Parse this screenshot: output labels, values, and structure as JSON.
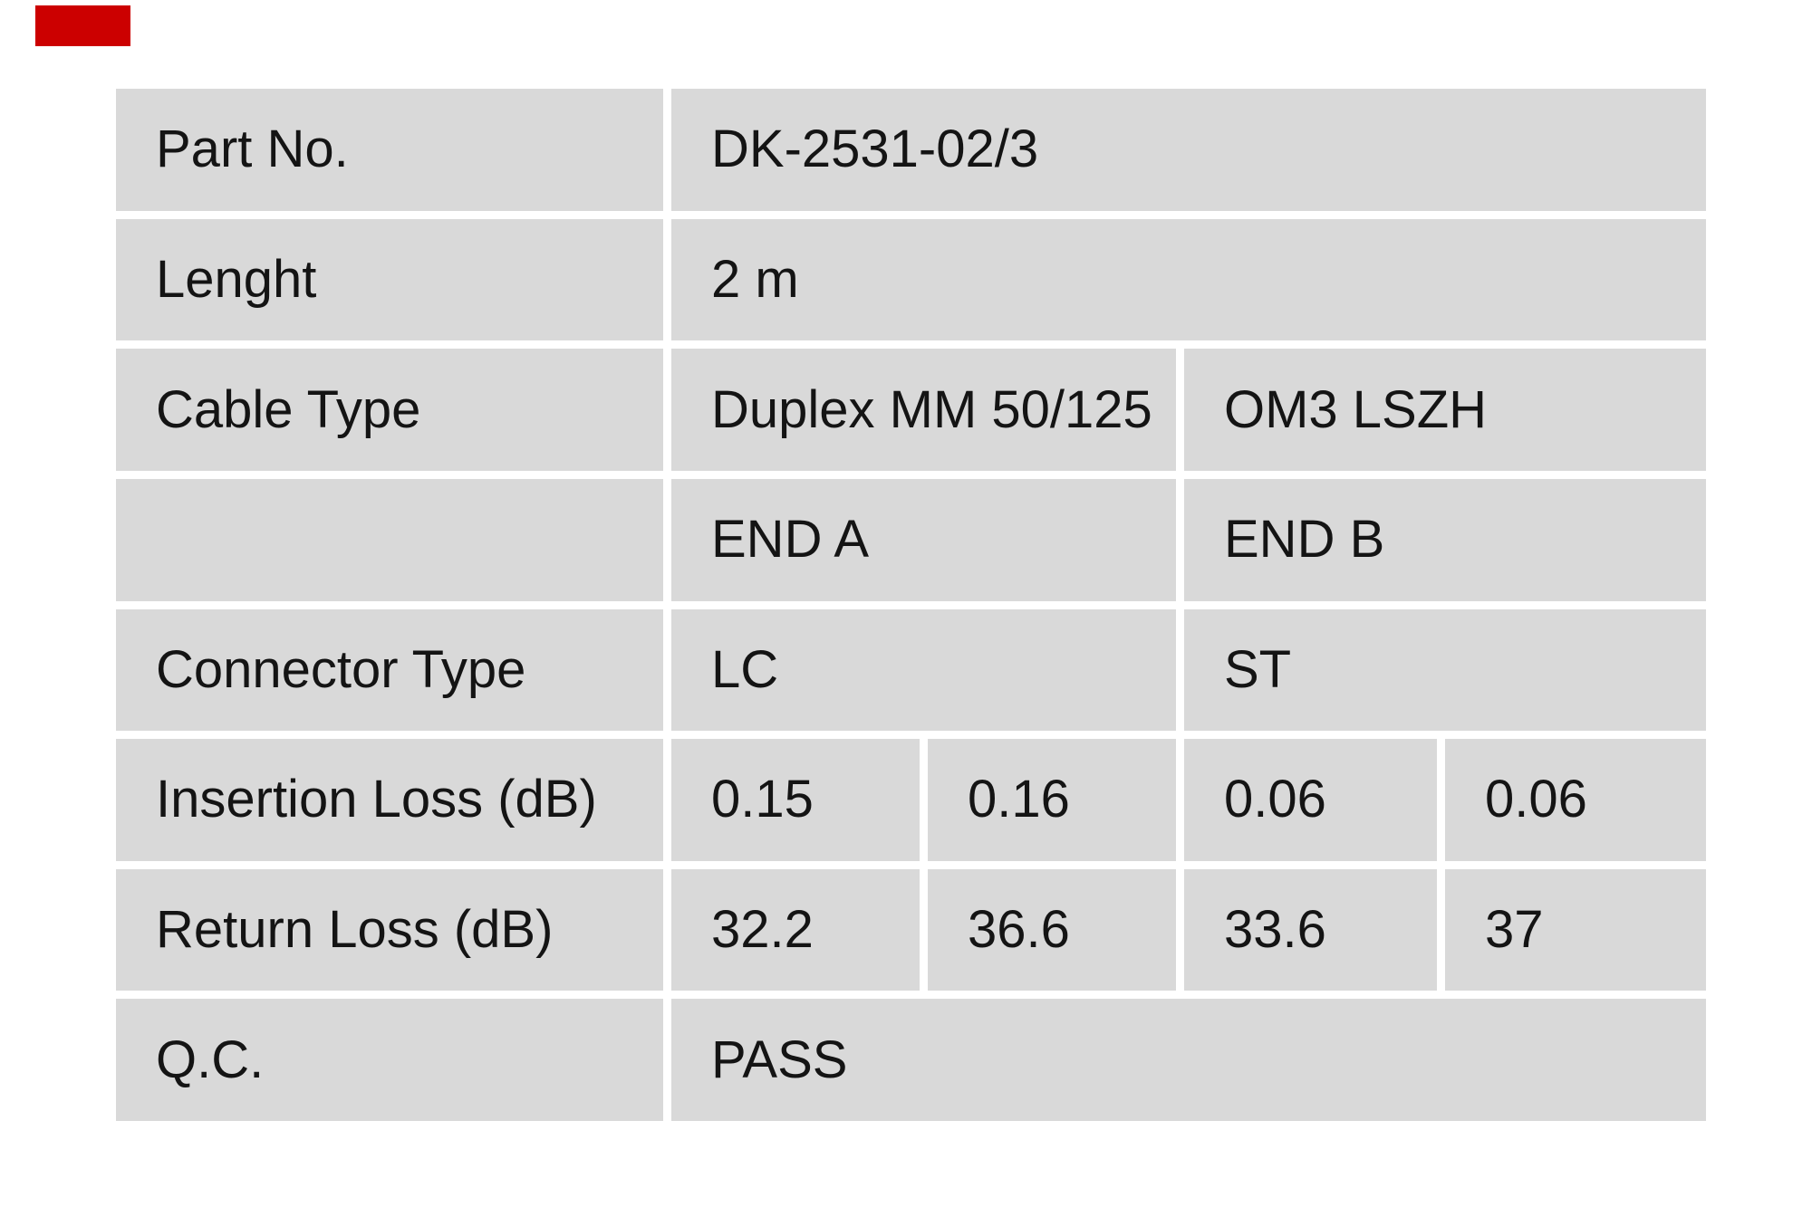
{
  "logo": {
    "name": "red-brand-block",
    "color": "#cc0000"
  },
  "table": {
    "colors": {
      "cell_bg": "#d9d9d9",
      "gutter": "#ffffff",
      "text": "#141414"
    },
    "rows": [
      {
        "label": "Part No.",
        "values": [
          "DK-2531-02/3"
        ]
      },
      {
        "label": "Lenght",
        "values": [
          "2 m"
        ]
      },
      {
        "label": "Cable Type",
        "values": [
          "Duplex MM 50/125",
          "OM3 LSZH"
        ]
      },
      {
        "label": "",
        "values": [
          "END A",
          "END B"
        ]
      },
      {
        "label": "Connector Type",
        "values": [
          "LC",
          "ST"
        ]
      },
      {
        "label": "Insertion Loss (dB)",
        "values": [
          "0.15",
          "0.16",
          "0.06",
          "0.06"
        ]
      },
      {
        "label": "Return Loss (dB)",
        "values": [
          "32.2",
          "36.6",
          "33.6",
          "37"
        ]
      },
      {
        "label": "Q.C.",
        "values": [
          "PASS"
        ]
      }
    ]
  }
}
